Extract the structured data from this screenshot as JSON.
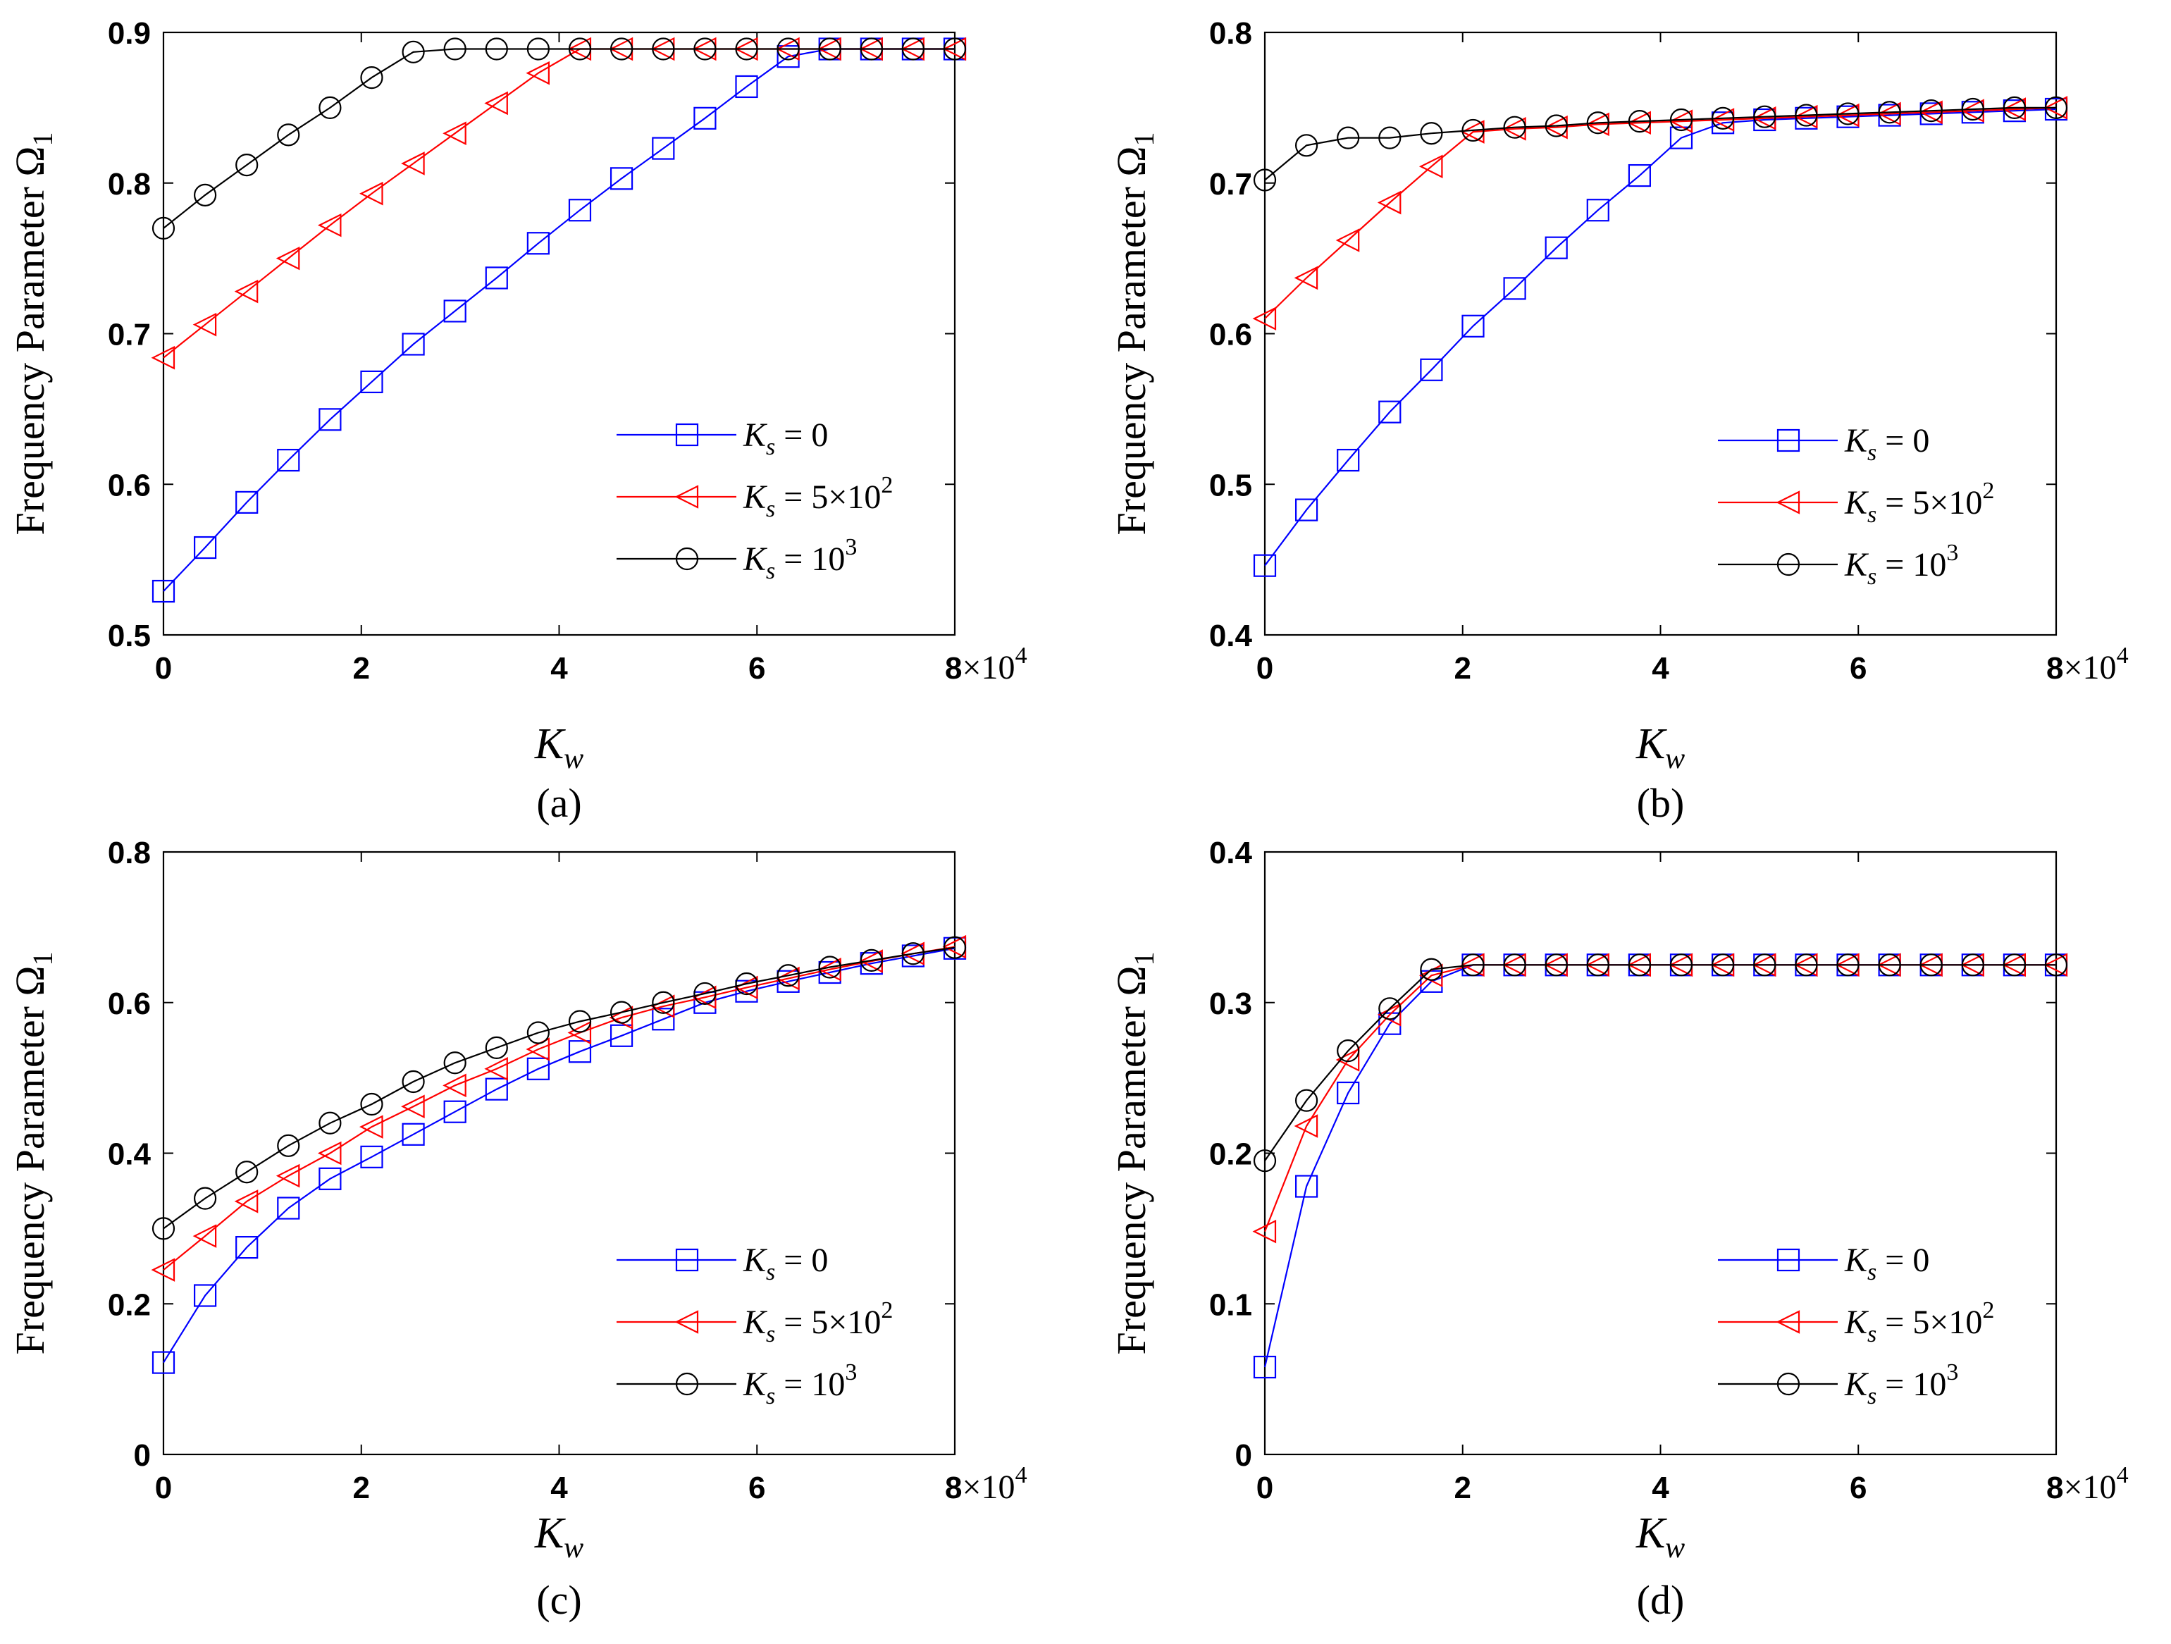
{
  "chart_data": [
    {
      "panel": "(a)",
      "type": "line",
      "ylabel": "Frequency Parameter",
      "ylabel_symbol": "Ω",
      "ylabel_sub": "1",
      "xlabel": "K",
      "xlabel_sub": "w",
      "xlim": [
        0,
        80000
      ],
      "ylim": [
        0.5,
        0.9
      ],
      "xticks": [
        0,
        2,
        4,
        6
      ],
      "xtick_multiplier_tick": "8",
      "xtick_multiplier": "×10",
      "xtick_multiplier_exp": "4",
      "yticks": [
        "0.5",
        "0.6",
        "0.7",
        "0.8",
        "0.9"
      ],
      "legend_position": "lower-right",
      "x": [
        0,
        4210,
        8420,
        12630,
        16840,
        21050,
        25260,
        29470,
        33680,
        37890,
        42100,
        46310,
        50530,
        54740,
        58950,
        63160,
        67370,
        71580,
        75790,
        80000
      ],
      "series": [
        {
          "name": "K_s = 0",
          "label_main": "K",
          "label_sub": "s",
          "label_value": "= 0",
          "label_exp": "",
          "marker": "square",
          "color": "#0000ff",
          "values": [
            0.529,
            0.558,
            0.588,
            0.616,
            0.643,
            0.668,
            0.693,
            0.715,
            0.737,
            0.76,
            0.782,
            0.803,
            0.823,
            0.843,
            0.864,
            0.884,
            0.889,
            0.889,
            0.889,
            0.889
          ]
        },
        {
          "name": "K_s = 5×10^2",
          "label_main": "K",
          "label_sub": "s",
          "label_value": "= 5×10",
          "label_exp": "2",
          "marker": "triangle-left",
          "color": "#ff0000",
          "values": [
            0.684,
            0.706,
            0.728,
            0.75,
            0.772,
            0.793,
            0.813,
            0.833,
            0.853,
            0.873,
            0.889,
            0.889,
            0.889,
            0.889,
            0.889,
            0.889,
            0.889,
            0.889,
            0.889,
            0.889
          ]
        },
        {
          "name": "K_s = 10^3",
          "label_main": "K",
          "label_sub": "s",
          "label_value": "= 10",
          "label_exp": "3",
          "marker": "circle",
          "color": "#000000",
          "values": [
            0.77,
            0.792,
            0.812,
            0.832,
            0.85,
            0.87,
            0.887,
            0.889,
            0.889,
            0.889,
            0.889,
            0.889,
            0.889,
            0.889,
            0.889,
            0.889,
            0.889,
            0.889,
            0.889,
            0.889
          ]
        }
      ]
    },
    {
      "panel": "(b)",
      "type": "line",
      "ylabel": "Frequency Parameter",
      "ylabel_symbol": "Ω",
      "ylabel_sub": "1",
      "xlabel": "K",
      "xlabel_sub": "w",
      "xlim": [
        0,
        80000
      ],
      "ylim": [
        0.4,
        0.8
      ],
      "xticks": [
        0,
        2,
        4,
        6
      ],
      "xtick_multiplier_tick": "8",
      "xtick_multiplier": "×10",
      "xtick_multiplier_exp": "4",
      "yticks": [
        "0.4",
        "0.5",
        "0.6",
        "0.7",
        "0.8"
      ],
      "legend_position": "lower-right",
      "x": [
        0,
        4210,
        8420,
        12630,
        16840,
        21050,
        25260,
        29470,
        33680,
        37890,
        42100,
        46310,
        50530,
        54740,
        58950,
        63160,
        67370,
        71580,
        75790,
        80000
      ],
      "series": [
        {
          "name": "K_s = 0",
          "label_main": "K",
          "label_sub": "s",
          "label_value": "= 0",
          "label_exp": "",
          "marker": "square",
          "color": "#0000ff",
          "values": [
            0.446,
            0.483,
            0.516,
            0.548,
            0.576,
            0.605,
            0.63,
            0.657,
            0.682,
            0.705,
            0.73,
            0.74,
            0.742,
            0.743,
            0.744,
            0.745,
            0.746,
            0.747,
            0.748,
            0.749
          ]
        },
        {
          "name": "K_s = 5×10^2",
          "label_main": "K",
          "label_sub": "s",
          "label_value": "= 5×10",
          "label_exp": "2",
          "marker": "triangle-left",
          "color": "#ff0000",
          "values": [
            0.61,
            0.637,
            0.662,
            0.687,
            0.711,
            0.734,
            0.736,
            0.737,
            0.739,
            0.74,
            0.741,
            0.742,
            0.743,
            0.744,
            0.745,
            0.746,
            0.747,
            0.748,
            0.749,
            0.75
          ]
        },
        {
          "name": "K_s = 10^3",
          "label_main": "K",
          "label_sub": "s",
          "label_value": "= 10",
          "label_exp": "3",
          "marker": "circle",
          "color": "#000000",
          "values": [
            0.702,
            0.725,
            0.73,
            0.73,
            0.733,
            0.735,
            0.737,
            0.738,
            0.74,
            0.741,
            0.742,
            0.743,
            0.744,
            0.745,
            0.746,
            0.747,
            0.748,
            0.749,
            0.75,
            0.75
          ]
        }
      ]
    },
    {
      "panel": "(c)",
      "type": "line",
      "ylabel": "Frequency Parameter",
      "ylabel_symbol": "Ω",
      "ylabel_sub": "1",
      "xlabel": "K",
      "xlabel_sub": "w",
      "xlim": [
        0,
        80000
      ],
      "ylim": [
        0,
        0.8
      ],
      "xticks": [
        0,
        2,
        4,
        6
      ],
      "xtick_multiplier_tick": "8",
      "xtick_multiplier": "×10",
      "xtick_multiplier_exp": "4",
      "yticks": [
        "0",
        "0.2",
        "0.4",
        "0.6",
        "0.8"
      ],
      "legend_position": "lower-right",
      "x": [
        0,
        4210,
        8420,
        12630,
        16840,
        21050,
        25260,
        29470,
        33680,
        37890,
        42100,
        46310,
        50530,
        54740,
        58950,
        63160,
        67370,
        71580,
        75790,
        80000
      ],
      "series": [
        {
          "name": "K_s = 0",
          "label_main": "K",
          "label_sub": "s",
          "label_value": "= 0",
          "label_exp": "",
          "marker": "square",
          "color": "#0000ff",
          "values": [
            0.122,
            0.211,
            0.275,
            0.327,
            0.366,
            0.395,
            0.425,
            0.455,
            0.485,
            0.512,
            0.535,
            0.556,
            0.578,
            0.6,
            0.615,
            0.628,
            0.64,
            0.652,
            0.662,
            0.672
          ]
        },
        {
          "name": "K_s = 5×10^2",
          "label_main": "K",
          "label_sub": "s",
          "label_value": "= 5×10",
          "label_exp": "2",
          "marker": "triangle-left",
          "color": "#ff0000",
          "values": [
            0.245,
            0.29,
            0.336,
            0.37,
            0.4,
            0.435,
            0.462,
            0.49,
            0.512,
            0.538,
            0.56,
            0.58,
            0.595,
            0.607,
            0.62,
            0.632,
            0.644,
            0.655,
            0.665,
            0.674
          ]
        },
        {
          "name": "K_s = 10^3",
          "label_main": "K",
          "label_sub": "s",
          "label_value": "= 10",
          "label_exp": "3",
          "marker": "circle",
          "color": "#000000",
          "values": [
            0.3,
            0.34,
            0.375,
            0.41,
            0.44,
            0.465,
            0.495,
            0.52,
            0.54,
            0.56,
            0.575,
            0.587,
            0.6,
            0.612,
            0.625,
            0.636,
            0.647,
            0.656,
            0.665,
            0.673
          ]
        }
      ]
    },
    {
      "panel": "(d)",
      "type": "line",
      "ylabel": "Frequency Parameter",
      "ylabel_symbol": "Ω",
      "ylabel_sub": "1",
      "xlabel": "K",
      "xlabel_sub": "w",
      "xlim": [
        0,
        80000
      ],
      "ylim": [
        0,
        0.4
      ],
      "xticks": [
        0,
        2,
        4,
        6
      ],
      "xtick_multiplier_tick": "8",
      "xtick_multiplier": "×10",
      "xtick_multiplier_exp": "4",
      "yticks": [
        "0",
        "0.1",
        "0.2",
        "0.3",
        "0.4"
      ],
      "legend_position": "lower-right",
      "x": [
        0,
        4210,
        8420,
        12630,
        16840,
        21050,
        25260,
        29470,
        33680,
        37890,
        42100,
        46310,
        50530,
        54740,
        58950,
        63160,
        67370,
        71580,
        75790,
        80000
      ],
      "series": [
        {
          "name": "K_s = 0",
          "label_main": "K",
          "label_sub": "s",
          "label_value": "= 0",
          "label_exp": "",
          "marker": "square",
          "color": "#0000ff",
          "values": [
            0.058,
            0.178,
            0.24,
            0.286,
            0.314,
            0.325,
            0.325,
            0.325,
            0.325,
            0.325,
            0.325,
            0.325,
            0.325,
            0.325,
            0.325,
            0.325,
            0.325,
            0.325,
            0.325,
            0.325
          ]
        },
        {
          "name": "K_s = 5×10^2",
          "label_main": "K",
          "label_sub": "s",
          "label_value": "= 5×10",
          "label_exp": "2",
          "marker": "triangle-left",
          "color": "#ff0000",
          "values": [
            0.148,
            0.218,
            0.262,
            0.292,
            0.318,
            0.325,
            0.325,
            0.325,
            0.325,
            0.325,
            0.325,
            0.325,
            0.325,
            0.325,
            0.325,
            0.325,
            0.325,
            0.325,
            0.325,
            0.325
          ]
        },
        {
          "name": "K_s = 10^3",
          "label_main": "K",
          "label_sub": "s",
          "label_value": "= 10",
          "label_exp": "3",
          "marker": "circle",
          "color": "#000000",
          "values": [
            0.195,
            0.235,
            0.268,
            0.296,
            0.322,
            0.325,
            0.325,
            0.325,
            0.325,
            0.325,
            0.325,
            0.325,
            0.325,
            0.325,
            0.325,
            0.325,
            0.325,
            0.325,
            0.325,
            0.325
          ]
        }
      ]
    }
  ]
}
